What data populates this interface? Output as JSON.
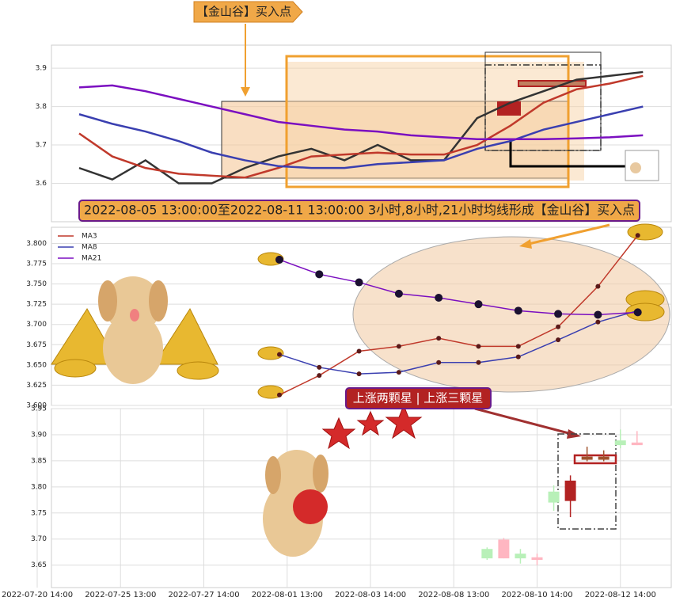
{
  "chart_data": [
    {
      "type": "line",
      "annotations": [
        "【金山谷】买入点",
        "2022-08-05 13:00:00至2022-08-11 13:00:00 3小时,8小时,21小时均线形成【金山谷】买入点"
      ],
      "ylim": [
        3.5,
        3.96
      ],
      "yticks": [
        3.6,
        3.7,
        3.8,
        3.9
      ],
      "grid": true,
      "series": [
        {
          "color": "#333333",
          "values": [
            3.64,
            3.61,
            3.66,
            3.6,
            3.6,
            3.64,
            3.67,
            3.69,
            3.66,
            3.7,
            3.66,
            3.66,
            3.77,
            3.81,
            3.84,
            3.87,
            3.88,
            3.89
          ]
        },
        {
          "color": "#c0392b",
          "values": [
            3.73,
            3.67,
            3.64,
            3.625,
            3.62,
            3.615,
            3.64,
            3.67,
            3.675,
            3.68,
            3.675,
            3.675,
            3.7,
            3.75,
            3.81,
            3.845,
            3.86,
            3.88
          ]
        },
        {
          "color": "#3a3fb0",
          "values": [
            3.78,
            3.755,
            3.735,
            3.71,
            3.68,
            3.66,
            3.645,
            3.64,
            3.64,
            3.65,
            3.655,
            3.66,
            3.69,
            3.71,
            3.74,
            3.76,
            3.78,
            3.8
          ]
        },
        {
          "color": "#7b0fc0",
          "values": [
            3.85,
            3.855,
            3.84,
            3.82,
            3.8,
            3.78,
            3.76,
            3.75,
            3.74,
            3.735,
            3.725,
            3.72,
            3.715,
            3.715,
            3.715,
            3.717,
            3.72,
            3.725
          ]
        }
      ]
    },
    {
      "type": "line",
      "ylim": [
        3.6,
        3.82
      ],
      "grid": true,
      "legend": "upper left",
      "yticks": [
        {
          "value": 3.6,
          "label": "3.600"
        },
        3.625,
        {
          "value": 3.65,
          "label": "3.650"
        },
        3.675,
        {
          "value": 3.7,
          "label": "3.700"
        },
        3.725,
        {
          "value": 3.75,
          "label": "3.750"
        },
        3.775,
        {
          "value": 3.8,
          "label": "3.800"
        }
      ],
      "series": [
        {
          "name": "MA3",
          "color": "#c0392b",
          "values": [
            3.613,
            3.637,
            3.667,
            3.673,
            3.683,
            3.673,
            3.673,
            3.697,
            3.747,
            3.81
          ]
        },
        {
          "name": "MA8",
          "color": "#3a3fb0",
          "values": [
            3.663,
            3.647,
            3.639,
            3.641,
            3.653,
            3.653,
            3.66,
            3.681,
            3.703,
            3.717
          ]
        },
        {
          "name": "MA21",
          "color": "#7b0fc0",
          "values": [
            3.78,
            3.762,
            3.752,
            3.738,
            3.733,
            3.725,
            3.717,
            3.713,
            3.712,
            3.715
          ]
        }
      ]
    },
    {
      "type": "candlestick",
      "annotations": [
        "上涨两颗星 | 上涨三颗星"
      ],
      "ylim": [
        3.607,
        3.95
      ],
      "grid": true,
      "yticks": [
        3.65,
        {
          "value": 3.7,
          "label": "3.70"
        },
        3.75,
        {
          "value": 3.8,
          "label": "3.80"
        },
        3.85,
        {
          "value": 3.9,
          "label": "3.90"
        },
        3.95
      ],
      "categories": [
        "2022-07-20 14:00",
        null,
        null,
        null,
        null,
        "2022-07-25 13:00",
        null,
        null,
        null,
        null,
        "2022-07-27 14:00",
        null,
        null,
        null,
        null,
        "2022-08-01 13:00",
        null,
        null,
        null,
        null,
        "2022-08-03 14:00",
        null,
        null,
        null,
        null,
        "2022-08-08 13:00",
        null,
        null,
        null,
        null,
        "2022-08-10 14:00",
        null,
        null,
        null,
        null,
        "2022-08-12 14:00",
        null
      ],
      "open": [
        null,
        null,
        null,
        null,
        null,
        null,
        null,
        null,
        null,
        null,
        null,
        null,
        null,
        null,
        null,
        null,
        null,
        null,
        null,
        null,
        null,
        null,
        null,
        null,
        null,
        null,
        null,
        3.681,
        3.663,
        3.672,
        3.66,
        3.791,
        3.773,
        3.852,
        3.852,
        3.889,
        3.88
      ],
      "high": [
        null,
        null,
        null,
        null,
        null,
        null,
        null,
        null,
        null,
        null,
        null,
        null,
        null,
        null,
        null,
        null,
        null,
        null,
        null,
        null,
        null,
        null,
        null,
        null,
        null,
        null,
        null,
        3.684,
        3.702,
        3.681,
        3.672,
        3.803,
        3.822,
        3.877,
        3.87,
        3.91,
        3.907
      ],
      "low": [
        null,
        null,
        null,
        null,
        null,
        null,
        null,
        null,
        null,
        null,
        null,
        null,
        null,
        null,
        null,
        null,
        null,
        null,
        null,
        null,
        null,
        null,
        null,
        null,
        null,
        null,
        null,
        3.66,
        3.663,
        3.653,
        3.65,
        3.754,
        3.742,
        3.849,
        3.849,
        3.874,
        3.88
      ],
      "close": [
        null,
        null,
        null,
        null,
        null,
        null,
        null,
        null,
        null,
        null,
        null,
        null,
        null,
        null,
        null,
        null,
        null,
        null,
        null,
        null,
        null,
        null,
        null,
        null,
        null,
        null,
        null,
        3.663,
        3.699,
        3.663,
        3.665,
        3.77,
        3.812,
        3.858,
        3.858,
        3.88,
        3.885
      ],
      "colors": [
        null,
        null,
        null,
        null,
        null,
        null,
        null,
        null,
        null,
        null,
        null,
        null,
        null,
        null,
        null,
        null,
        null,
        null,
        null,
        null,
        null,
        null,
        null,
        null,
        null,
        null,
        null,
        "#b8f0b8",
        "#ffb6c1",
        "#b8f0b8",
        "#ffb6c1",
        "#b8f0b8",
        "#b22222",
        "#a0522d",
        "#a0522d",
        "#b8f0b8",
        "#ffb6c1"
      ]
    }
  ]
}
